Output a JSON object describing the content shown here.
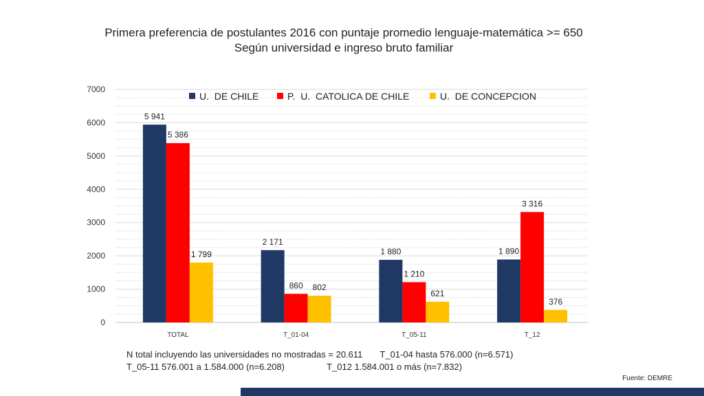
{
  "chart_data": {
    "type": "bar",
    "title": "Primera preferencia de postulantes 2016 con puntaje promedio lenguaje-matemática >= 650",
    "subtitle": "Según universidad e ingreso bruto familiar",
    "categories": [
      "TOTAL",
      "T_01-04",
      "T_05-11",
      "T_12"
    ],
    "series": [
      {
        "name": "U.  DE CHILE",
        "values": [
          5941,
          2171,
          1880,
          1890
        ],
        "labels": [
          "5 941",
          "2 171",
          "1 880",
          "1 890"
        ],
        "color": "#1f3864"
      },
      {
        "name": "P.  U.  CATOLICA DE CHILE",
        "values": [
          5386,
          860,
          1210,
          3316
        ],
        "labels": [
          "5 386",
          "860",
          "1 210",
          "3 316"
        ],
        "color": "#ff0000"
      },
      {
        "name": "U.  DE CONCEPCION",
        "values": [
          1799,
          802,
          621,
          376
        ],
        "labels": [
          "1 799",
          "802",
          "621",
          "376"
        ],
        "color": "#ffc000"
      }
    ],
    "ylim": [
      0,
      7000
    ],
    "yticks": [
      0,
      1000,
      2000,
      3000,
      4000,
      5000,
      6000,
      7000
    ],
    "grid": true,
    "legend_position": "top"
  },
  "notes": {
    "line1": "N total incluyendo las universidades no mostradas = 20.611       T_01-04 hasta 576.000 (n=6.571)",
    "line2": "T_05-11 576.001 a 1.584.000 (n=6.208)                 T_012 1.584.001 o más (n=7.832)"
  },
  "source": "Fuente: DEMRE",
  "colors": {
    "footer_bar": "#1f3864"
  }
}
